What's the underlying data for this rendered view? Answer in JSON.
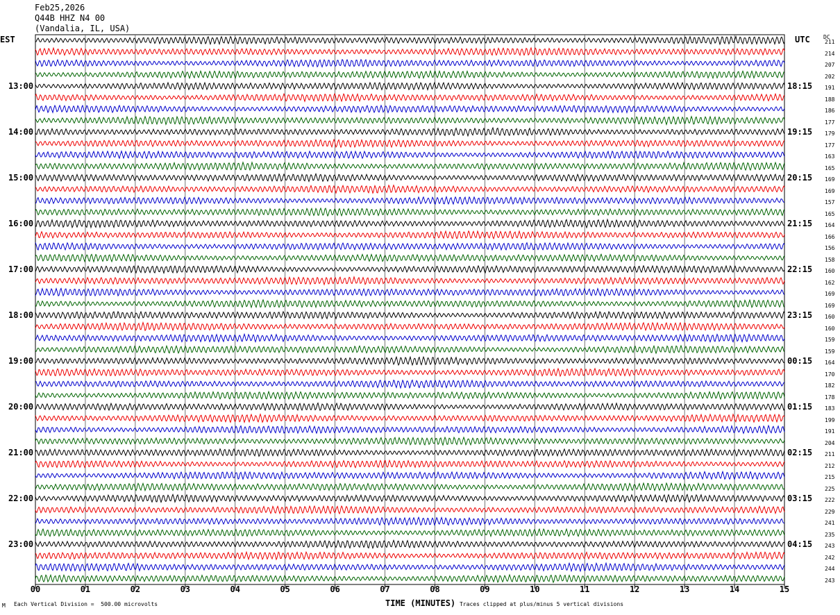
{
  "header": {
    "date": "Feb25,2026",
    "station": "Q44B HHZ N4 00",
    "location": "(Vandalia, IL, USA)"
  },
  "left_timezone": "EST",
  "right_timezone": "UTC",
  "dc_header": "DC",
  "footer": {
    "scale_note": "Each Vertical Division =  500.00 microvolts",
    "clip_note": "Traces clipped at plus/minus 5 vertical divisions",
    "corner_mark": "M"
  },
  "colors": {
    "black": "#000000",
    "red": "#ee0000",
    "blue": "#0000cc",
    "green": "#006400"
  },
  "chart_data": {
    "type": "line",
    "xlabel": "TIME (MINUTES)",
    "xlim": [
      0,
      15
    ],
    "x_ticks": [
      "00",
      "01",
      "02",
      "03",
      "04",
      "05",
      "06",
      "07",
      "08",
      "09",
      "10",
      "11",
      "12",
      "13",
      "14",
      "15"
    ],
    "rows_per_hour": 4,
    "trace_color_cycle": [
      "black",
      "red",
      "blue",
      "green"
    ],
    "est_labels": [
      "13:00",
      "14:00",
      "15:00",
      "16:00",
      "17:00",
      "18:00",
      "19:00",
      "20:00",
      "21:00",
      "22:00",
      "23:00"
    ],
    "utc_labels": [
      "18:15",
      "19:15",
      "20:15",
      "21:15",
      "22:15",
      "23:15",
      "00:15",
      "01:15",
      "02:15",
      "03:15",
      "04:15"
    ],
    "dc_offsets": [
      211,
      214,
      207,
      202,
      191,
      188,
      186,
      177,
      179,
      177,
      163,
      165,
      169,
      169,
      157,
      165,
      164,
      166,
      156,
      158,
      160,
      162,
      169,
      169,
      160,
      160,
      159,
      159,
      164,
      170,
      182,
      178,
      183,
      199,
      191,
      204,
      211,
      212,
      215,
      225,
      222,
      229,
      241,
      235,
      243,
      242,
      244,
      243
    ]
  }
}
